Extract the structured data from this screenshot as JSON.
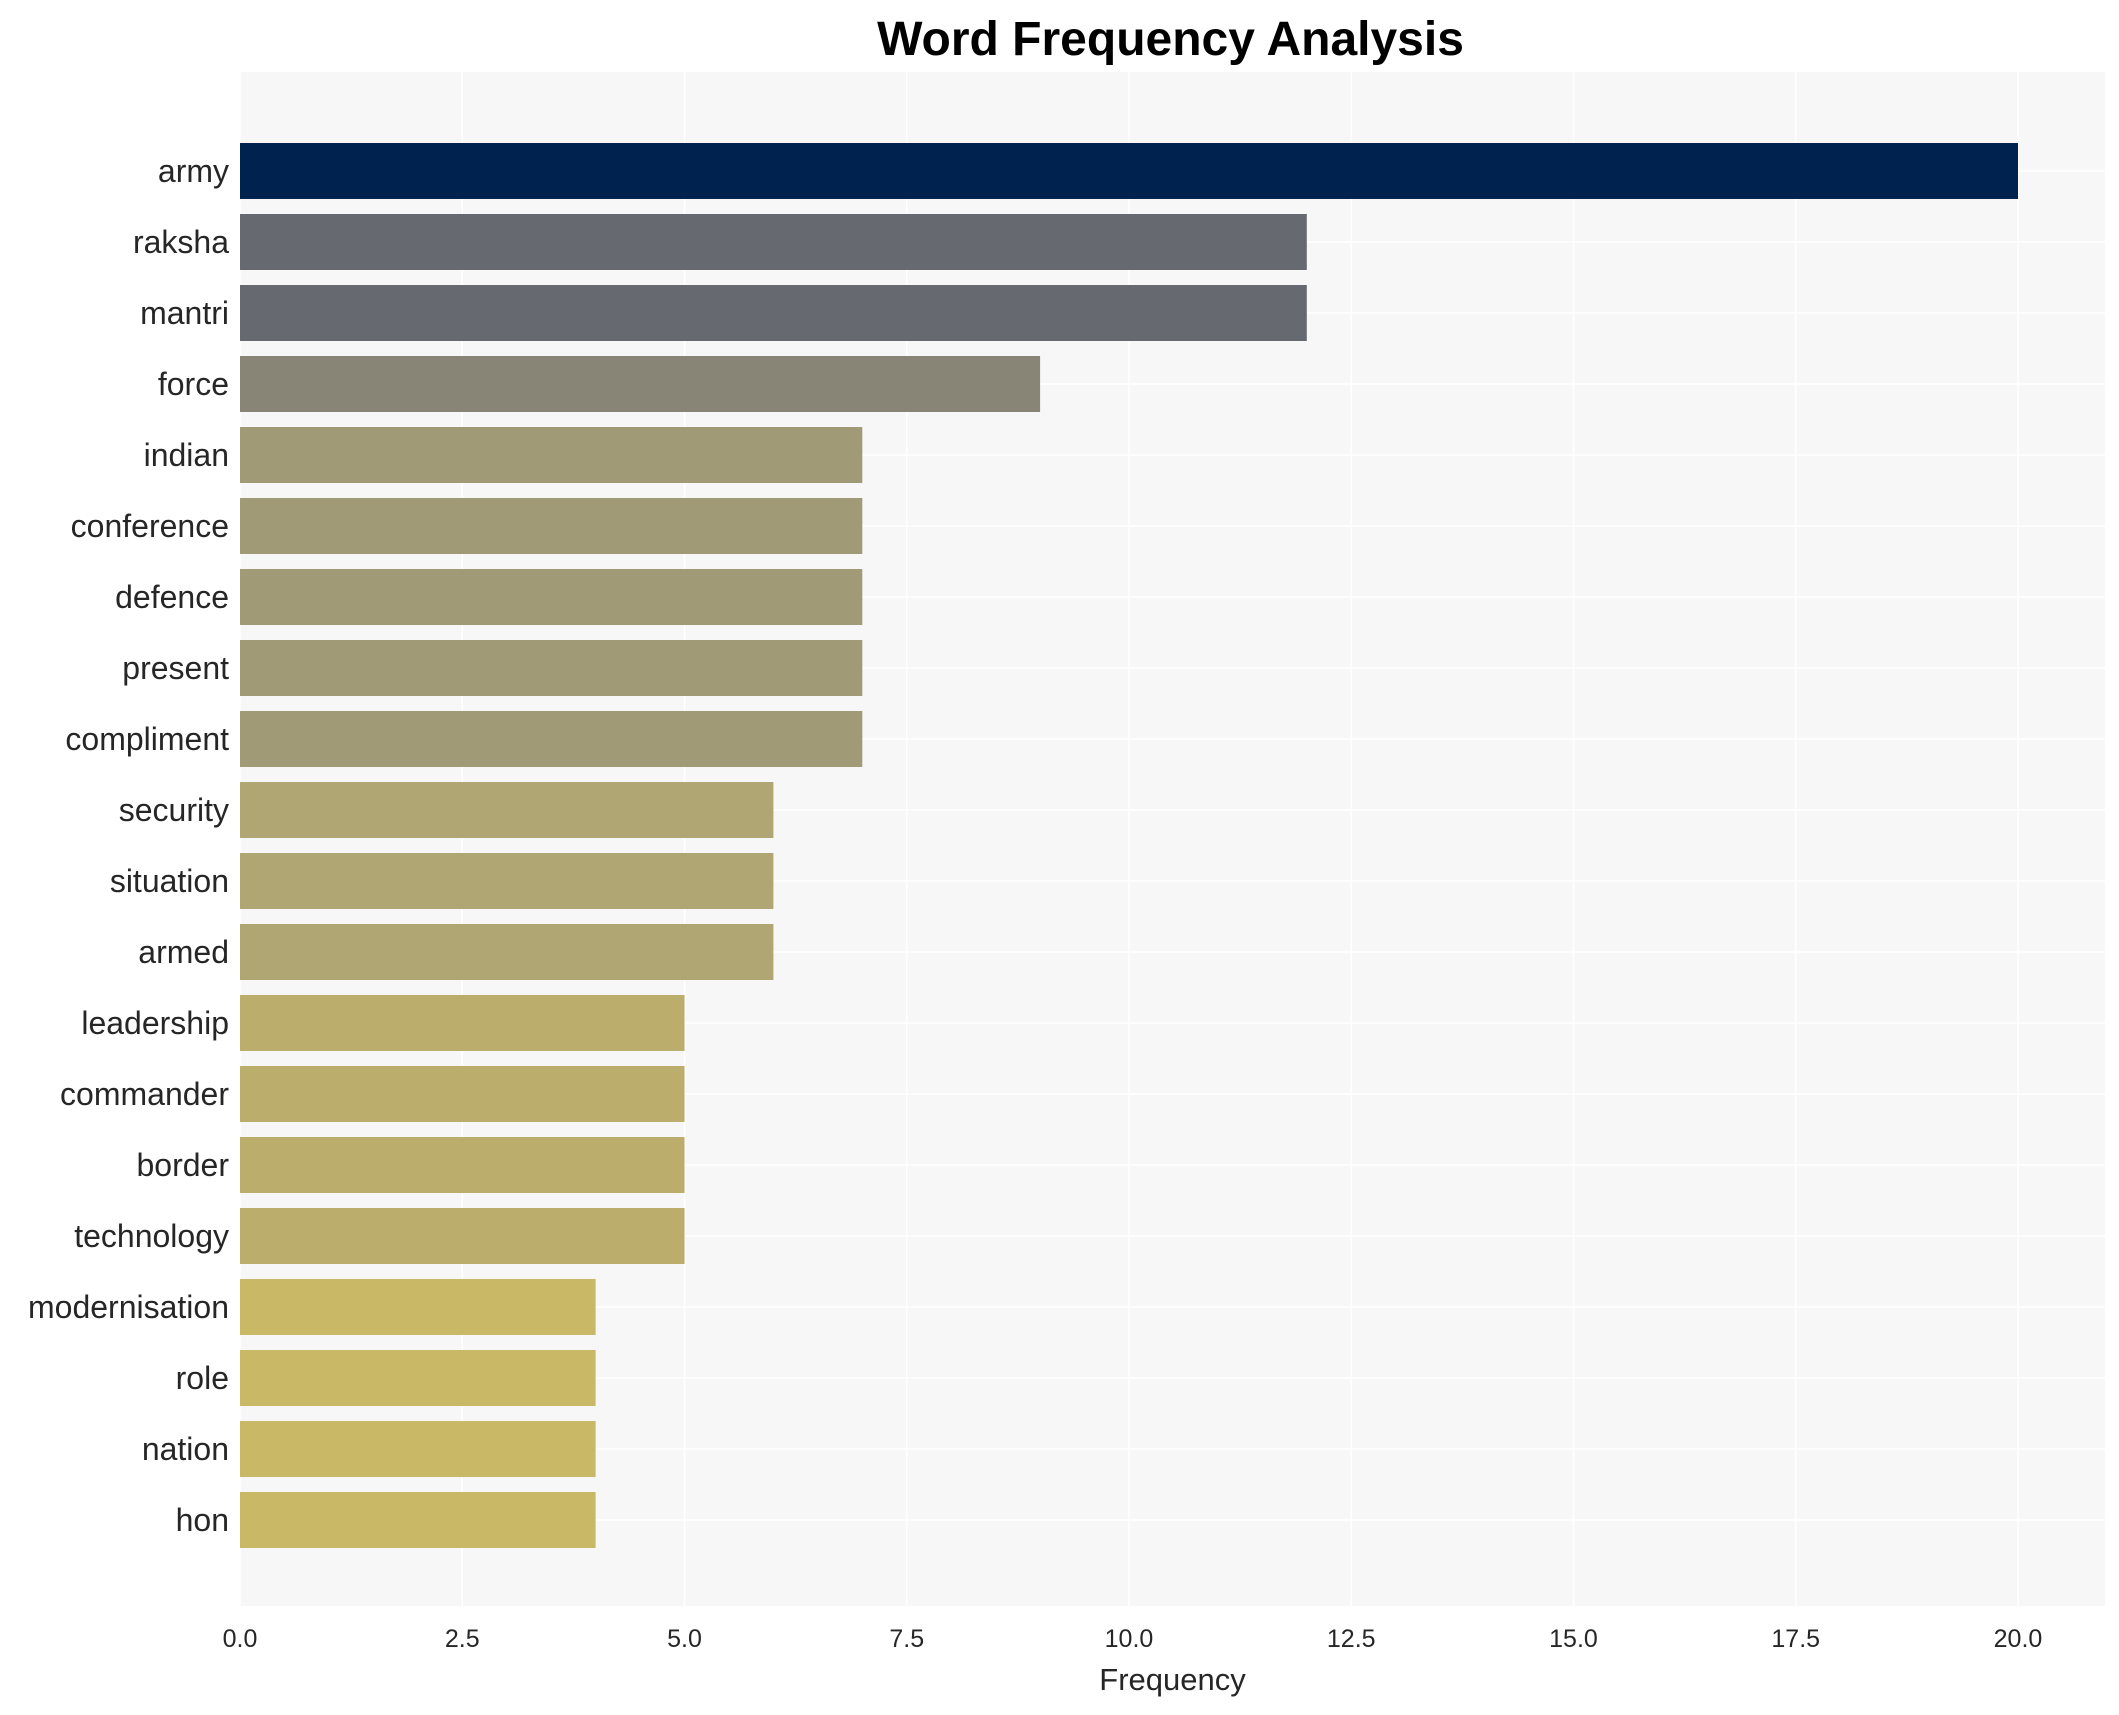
{
  "chart_data": {
    "type": "bar",
    "orientation": "horizontal",
    "title": "Word Frequency Analysis",
    "xlabel": "Frequency",
    "ylabel": "",
    "xlim": [
      0,
      21
    ],
    "xticks": [
      "0.0",
      "2.5",
      "5.0",
      "7.5",
      "10.0",
      "12.5",
      "15.0",
      "17.5",
      "20.0"
    ],
    "grid": true,
    "legend": "none",
    "categories": [
      "army",
      "raksha",
      "mantri",
      "force",
      "indian",
      "conference",
      "defence",
      "present",
      "compliment",
      "security",
      "situation",
      "armed",
      "leadership",
      "commander",
      "border",
      "technology",
      "modernisation",
      "role",
      "nation",
      "hon"
    ],
    "values": [
      20,
      12,
      12,
      9,
      7,
      7,
      7,
      7,
      7,
      6,
      6,
      6,
      5,
      5,
      5,
      5,
      4,
      4,
      4,
      4
    ],
    "colors": [
      "#00224e",
      "#666970",
      "#666970",
      "#888576",
      "#a19a76",
      "#a19a76",
      "#a19a76",
      "#a19a76",
      "#a19a76",
      "#b0a673",
      "#b0a673",
      "#b0a673",
      "#bbad6c",
      "#bbad6c",
      "#bbad6c",
      "#bbad6c",
      "#c9b865",
      "#c9b865",
      "#c9b865",
      "#c9b865"
    ],
    "plot_background": "#f7f7f7",
    "grid_color": "#ffffff"
  }
}
